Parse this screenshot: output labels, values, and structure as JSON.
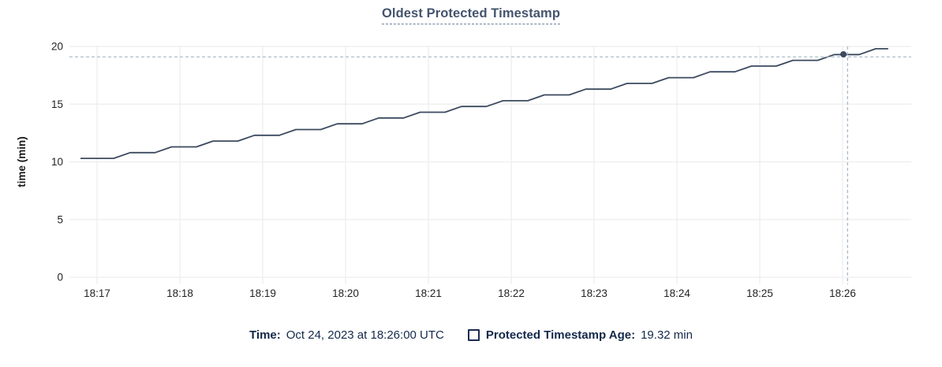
{
  "title": "Oldest Protected Timestamp",
  "chart_data": {
    "type": "line",
    "title": "Oldest Protected Timestamp",
    "xlabel": "",
    "ylabel": "time (min)",
    "ylim": [
      0,
      20
    ],
    "y_ticks": [
      0,
      5,
      10,
      15,
      20
    ],
    "x_ticks": [
      "18:17",
      "18:18",
      "18:19",
      "18:20",
      "18:21",
      "18:22",
      "18:23",
      "18:24",
      "18:25",
      "18:26"
    ],
    "grid": true,
    "legend_position": "bottom",
    "series": [
      {
        "name": "Protected Timestamp Age",
        "color": "#3b4a5f",
        "points": [
          [
            -0.2,
            10.3
          ],
          [
            0.2,
            10.3
          ],
          [
            0.4,
            10.8
          ],
          [
            0.7,
            10.8
          ],
          [
            0.9,
            11.3
          ],
          [
            1.2,
            11.3
          ],
          [
            1.4,
            11.8
          ],
          [
            1.7,
            11.8
          ],
          [
            1.9,
            12.3
          ],
          [
            2.2,
            12.3
          ],
          [
            2.4,
            12.8
          ],
          [
            2.7,
            12.8
          ],
          [
            2.9,
            13.3
          ],
          [
            3.2,
            13.3
          ],
          [
            3.4,
            13.8
          ],
          [
            3.7,
            13.8
          ],
          [
            3.9,
            14.3
          ],
          [
            4.2,
            14.3
          ],
          [
            4.4,
            14.8
          ],
          [
            4.7,
            14.8
          ],
          [
            4.9,
            15.3
          ],
          [
            5.2,
            15.3
          ],
          [
            5.4,
            15.8
          ],
          [
            5.7,
            15.8
          ],
          [
            5.9,
            16.3
          ],
          [
            6.2,
            16.3
          ],
          [
            6.4,
            16.8
          ],
          [
            6.7,
            16.8
          ],
          [
            6.9,
            17.3
          ],
          [
            7.2,
            17.3
          ],
          [
            7.4,
            17.8
          ],
          [
            7.7,
            17.8
          ],
          [
            7.9,
            18.3
          ],
          [
            8.2,
            18.3
          ],
          [
            8.4,
            18.8
          ],
          [
            8.7,
            18.8
          ],
          [
            8.9,
            19.3
          ],
          [
            9.2,
            19.3
          ],
          [
            9.4,
            19.8
          ],
          [
            9.55,
            19.8
          ]
        ]
      }
    ],
    "hover": {
      "time_label": "18:26",
      "crosshair_x_min": 9.06,
      "crosshair_y_value": 19.1,
      "dot_x_min": 9.01,
      "dot_value": 19.32
    }
  },
  "footer": {
    "time_label": "Time:",
    "time_value": "Oct 24, 2023 at 18:26:00 UTC",
    "series_label": "Protected Timestamp Age:",
    "series_value": "19.32 min"
  },
  "colors": {
    "title": "#44546e",
    "grid": "#ededed",
    "tick_text": "#242424",
    "axis_label": "#1a1a1a",
    "series_line": "#3b4a5f",
    "crosshair": "#a3b5c4",
    "dot": "#3b4a5f",
    "footer_text": "#13294b",
    "background": "#ffffff"
  }
}
